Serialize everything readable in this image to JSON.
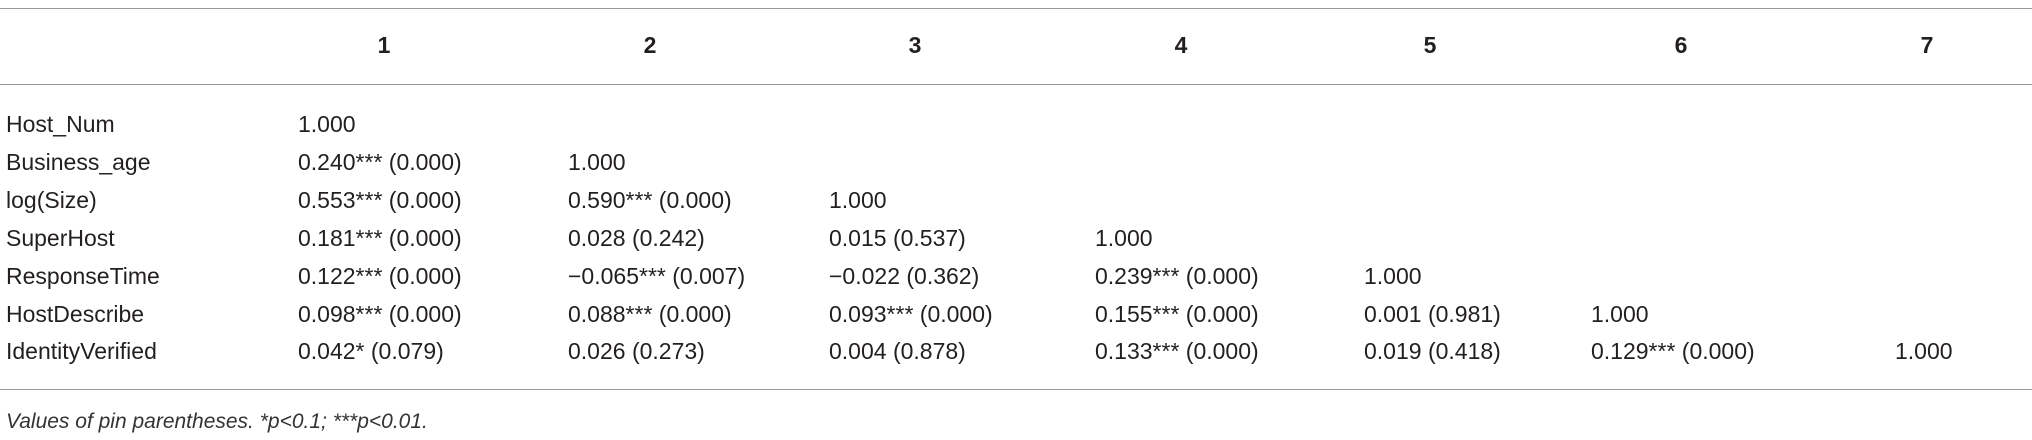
{
  "table": {
    "header": [
      "1",
      "2",
      "3",
      "4",
      "5",
      "6",
      "7"
    ],
    "rows": [
      {
        "label": "Host_Num",
        "cells": [
          "1.000"
        ]
      },
      {
        "label": "Business_age",
        "cells": [
          "0.240*** (0.000)",
          "1.000"
        ]
      },
      {
        "label": "log(Size)",
        "cells": [
          "0.553*** (0.000)",
          "0.590*** (0.000)",
          "1.000"
        ]
      },
      {
        "label": "SuperHost",
        "cells": [
          "0.181*** (0.000)",
          "0.028 (0.242)",
          "0.015 (0.537)",
          "1.000"
        ]
      },
      {
        "label": "ResponseTime",
        "cells": [
          "0.122*** (0.000)",
          "−0.065*** (0.007)",
          "−0.022 (0.362)",
          "0.239*** (0.000)",
          "1.000"
        ]
      },
      {
        "label": "HostDescribe",
        "cells": [
          "0.098*** (0.000)",
          "0.088*** (0.000)",
          "0.093*** (0.000)",
          "0.155*** (0.000)",
          "0.001 (0.981)",
          "1.000"
        ]
      },
      {
        "label": "IdentityVerified",
        "cells": [
          "0.042* (0.079)",
          "0.026 (0.273)",
          "0.004 (0.878)",
          "0.133*** (0.000)",
          "0.019 (0.418)",
          "0.129*** (0.000)",
          "1.000"
        ]
      }
    ],
    "footnote": "Values of pin parentheses. *p<0.1; ***p<0.01."
  }
}
